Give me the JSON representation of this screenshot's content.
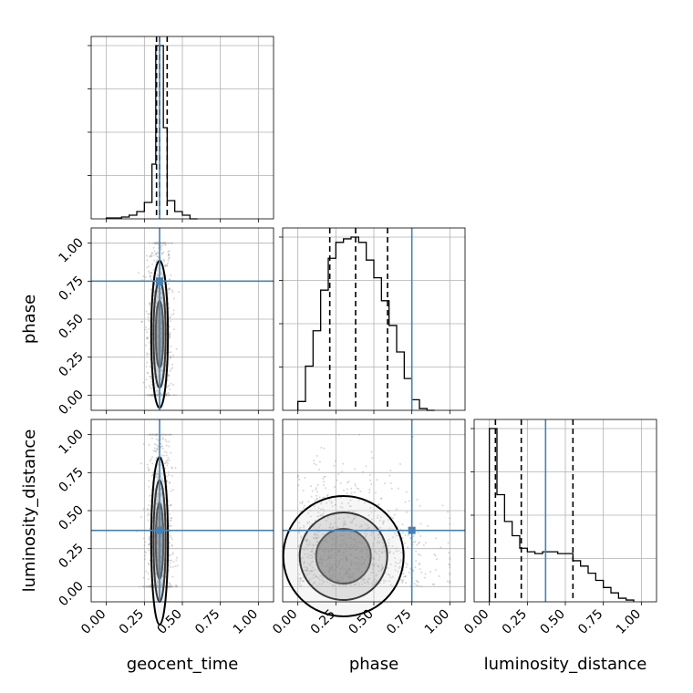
{
  "chart_data": {
    "type": "corner",
    "parameters": [
      "geocent_time",
      "phase",
      "luminosity_distance"
    ],
    "labels": {
      "geocent_time": "geocent_time",
      "phase": "phase",
      "luminosity_distance": "luminosity_distance"
    },
    "range": [
      -0.1,
      1.1
    ],
    "ticks": [
      "0.00",
      "0.25",
      "0.50",
      "0.75",
      "1.00"
    ],
    "tick_values": [
      0,
      0.25,
      0.5,
      0.75,
      1.0
    ],
    "grid": true,
    "colors": {
      "truth": "#4682b4",
      "hist": "#000000",
      "scatter": "#8c8c8c"
    },
    "truths": {
      "geocent_time": 0.35,
      "phase": 0.75,
      "luminosity_distance": 0.37
    },
    "quantiles": {
      "geocent_time": [
        0.33,
        0.35,
        0.4
      ],
      "phase": [
        0.21,
        0.38,
        0.59
      ],
      "luminosity_distance": [
        0.04,
        0.21,
        0.55
      ]
    },
    "hist_edges": [
      -0.1,
      1.1
    ],
    "histograms": {
      "geocent_time": {
        "bins": [
          0.0,
          0.05,
          0.1,
          0.15,
          0.2,
          0.25,
          0.3,
          0.325,
          0.35,
          0.375,
          0.4,
          0.45,
          0.5,
          0.55,
          0.6
        ],
        "counts": [
          0.5,
          0.5,
          1,
          2,
          4,
          9,
          30,
          95,
          95,
          50,
          10,
          4,
          2,
          0
        ]
      },
      "phase": {
        "bins": [
          0.0,
          0.05,
          0.1,
          0.15,
          0.2,
          0.25,
          0.3,
          0.35,
          0.4,
          0.45,
          0.5,
          0.55,
          0.6,
          0.65,
          0.7,
          0.75,
          0.8,
          0.85,
          0.9
        ],
        "counts": [
          5,
          25,
          45,
          68,
          86,
          95,
          97,
          98,
          95,
          85,
          75,
          62,
          48,
          33,
          18,
          6,
          1,
          0
        ]
      },
      "luminosity_distance": {
        "bins": [
          0.0,
          0.05,
          0.1,
          0.15,
          0.2,
          0.25,
          0.3,
          0.35,
          0.4,
          0.45,
          0.5,
          0.55,
          0.6,
          0.65,
          0.7,
          0.75,
          0.8,
          0.85,
          0.9,
          0.95
        ],
        "counts": [
          97,
          60,
          45,
          37,
          30,
          28,
          27,
          28,
          28,
          27,
          27,
          23,
          20,
          16,
          12,
          8,
          5,
          2,
          1
        ]
      }
    },
    "densities": {
      "geocent_time|phase": {
        "cx": 0.35,
        "cy": 0.4,
        "sx": 0.025,
        "sy": 0.22
      },
      "geocent_time|luminosity_distance": {
        "cx": 0.35,
        "cy": 0.3,
        "sx": 0.025,
        "sy": 0.25
      },
      "phase|luminosity_distance": {
        "cx": 0.3,
        "cy": 0.2,
        "sx": 0.18,
        "sy": 0.18
      }
    }
  }
}
